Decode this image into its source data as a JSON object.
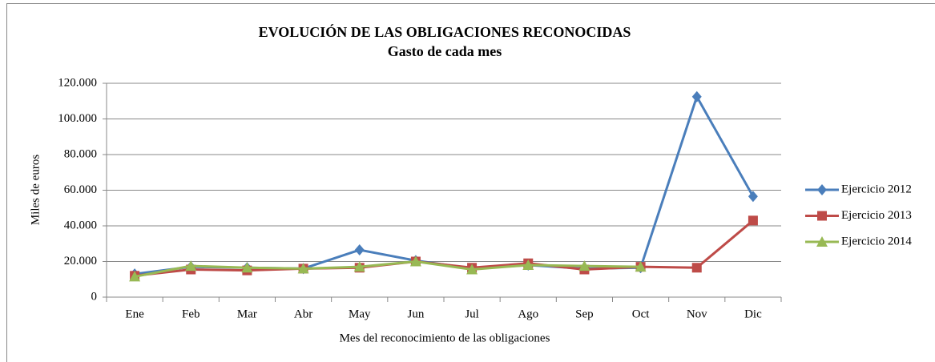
{
  "chart_data": {
    "type": "line",
    "title": "EVOLUCIÓN DE LAS OBLIGACIONES RECONOCIDAS",
    "subtitle": "Gasto de cada mes",
    "x_label": "Mes del reconocimiento de las obligaciones",
    "y_label": "Miles de euros",
    "categories": [
      "Ene",
      "Feb",
      "Mar",
      "Abr",
      "May",
      "Jun",
      "Jul",
      "Ago",
      "Sep",
      "Oct",
      "Nov",
      "Dic"
    ],
    "series": [
      {
        "name": "Ejercicio 2012",
        "color": "#4a7ebb",
        "marker": "diamond",
        "values": [
          13000,
          17000,
          16500,
          16000,
          26500,
          20500,
          16000,
          18000,
          16000,
          16500,
          112500,
          56500
        ]
      },
      {
        "name": "Ejercicio 2013",
        "color": "#be4b48",
        "marker": "square",
        "values": [
          12000,
          15500,
          15000,
          16000,
          16500,
          20000,
          16500,
          19000,
          15500,
          17000,
          16500,
          43000
        ]
      },
      {
        "name": "Ejercicio 2014",
        "color": "#98b954",
        "marker": "triangle",
        "values": [
          11500,
          17500,
          16500,
          16000,
          17000,
          20000,
          15500,
          18000,
          17500,
          17000,
          null,
          null
        ]
      }
    ],
    "ylim": [
      0,
      120000
    ],
    "yticks": [
      0,
      {
        "value": 20000,
        "label": "20.000"
      },
      {
        "value": 40000,
        "label": "40.000"
      },
      {
        "value": 60000,
        "label": "60.000"
      },
      {
        "value": 80000,
        "label": "80.000"
      },
      {
        "value": 100000,
        "label": "100.000"
      },
      {
        "value": 120000,
        "label": "120.000"
      }
    ],
    "grid": true,
    "legend": "right"
  }
}
